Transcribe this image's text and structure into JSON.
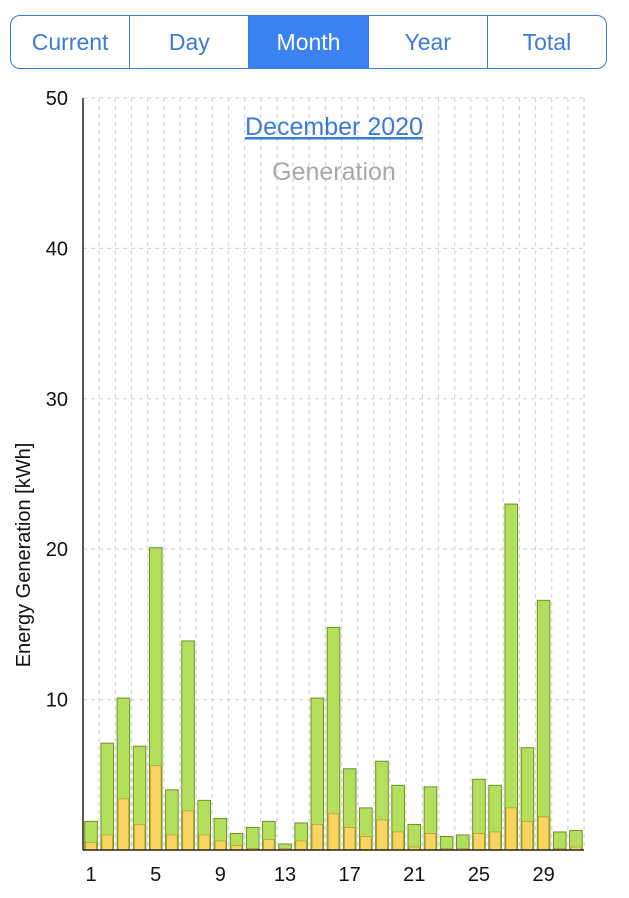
{
  "segmented_control": {
    "tabs": [
      {
        "label": "Current",
        "active": false
      },
      {
        "label": "Day",
        "active": false
      },
      {
        "label": "Month",
        "active": true
      },
      {
        "label": "Year",
        "active": false
      },
      {
        "label": "Total",
        "active": false
      }
    ]
  },
  "colors": {
    "accent": "#3a82f0",
    "bar_total": "#b4df5c",
    "bar_total_stroke": "#6f8f2a",
    "bar_self": "#f7d560",
    "bar_self_stroke": "#b08a1e",
    "grid": "#d6d6d6"
  },
  "chart_data": {
    "type": "bar",
    "title": "December 2020",
    "subtitle": "Generation",
    "xlabel": "",
    "ylabel": "Energy Generation [kWh]",
    "ylim": [
      0,
      50
    ],
    "yticks": [
      10,
      20,
      30,
      40,
      50
    ],
    "xticks": [
      1,
      5,
      9,
      13,
      17,
      21,
      25,
      29
    ],
    "grid": true,
    "stacked": true,
    "categories": [
      1,
      2,
      3,
      4,
      5,
      6,
      7,
      8,
      9,
      10,
      11,
      12,
      13,
      14,
      15,
      16,
      17,
      18,
      19,
      20,
      21,
      22,
      23,
      24,
      25,
      26,
      27,
      28,
      29,
      30,
      31
    ],
    "series": [
      {
        "values": [
          1.9,
          7.1,
          10.1,
          6.9,
          20.1,
          4.0,
          13.9,
          3.3,
          2.1,
          1.1,
          1.5,
          1.9,
          0.4,
          1.8,
          10.1,
          14.8,
          5.4,
          2.8,
          5.9,
          4.3,
          1.7,
          4.2,
          0.9,
          1.0,
          4.7,
          4.3,
          23.0,
          6.8,
          16.6,
          1.2,
          1.3
        ]
      },
      {
        "values": [
          0.5,
          1.0,
          3.4,
          1.7,
          5.6,
          1.0,
          2.6,
          1.0,
          0.6,
          0.3,
          0.1,
          0.7,
          0.1,
          0.6,
          1.7,
          2.4,
          1.5,
          0.9,
          2.0,
          1.2,
          0.2,
          1.1,
          0.1,
          0.1,
          1.1,
          1.2,
          2.8,
          1.9,
          2.2,
          0.1,
          0.2
        ]
      }
    ]
  }
}
